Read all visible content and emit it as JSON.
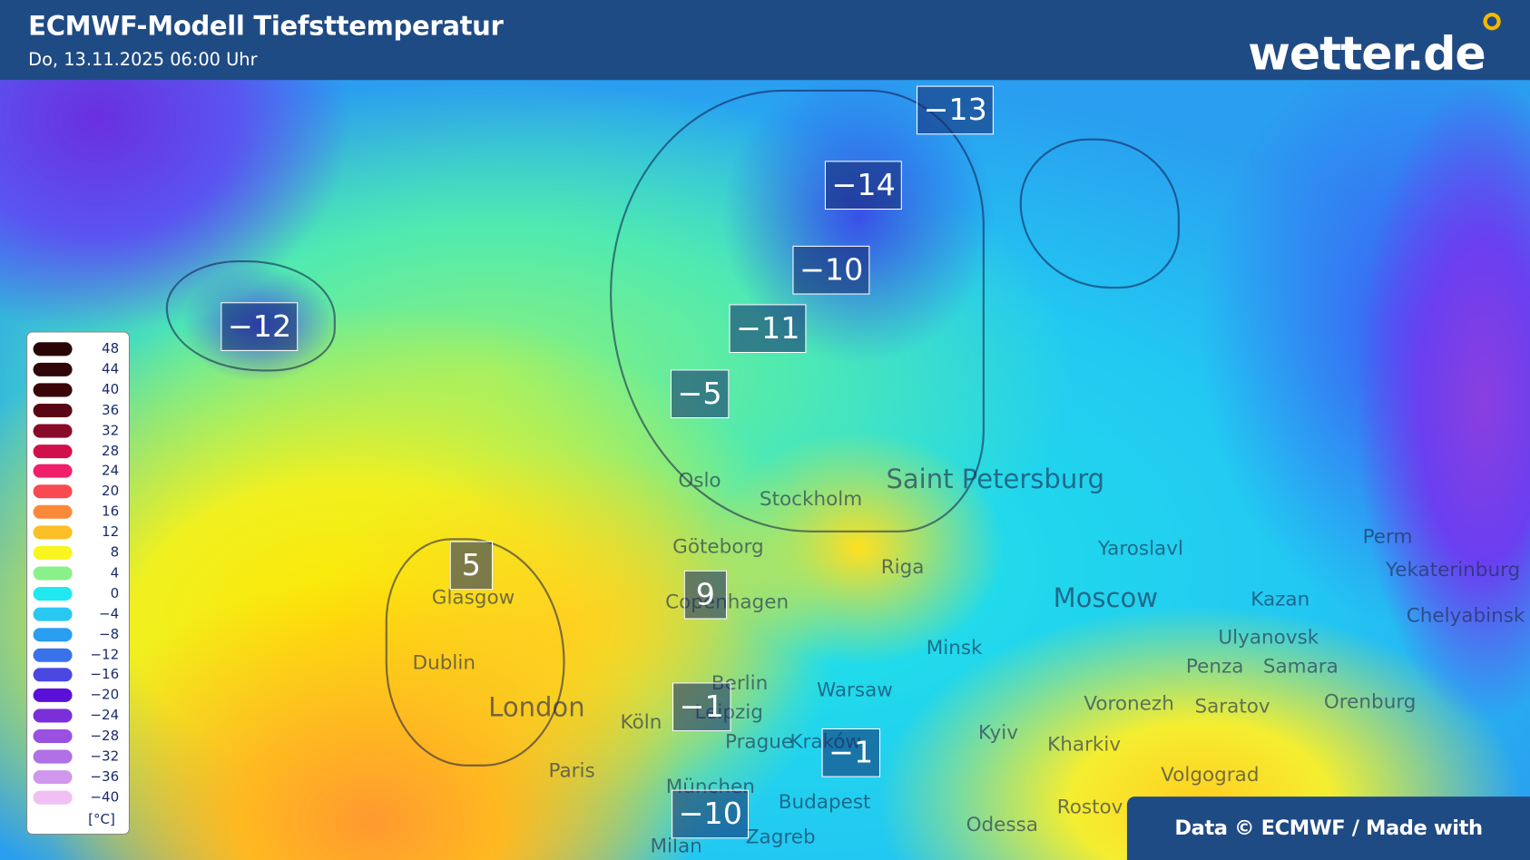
{
  "header": {
    "title": "ECMWF-Modell Tiefsttemperatur",
    "subtitle": "Do, 13.11.2025 06:00 Uhr",
    "logo": "wetter.de"
  },
  "legend": {
    "items": [
      {
        "label": "48",
        "color": "#2a0505"
      },
      {
        "label": "44",
        "color": "#300608"
      },
      {
        "label": "40",
        "color": "#3a0508"
      },
      {
        "label": "36",
        "color": "#5a0515"
      },
      {
        "label": "32",
        "color": "#8a0a2a"
      },
      {
        "label": "28",
        "color": "#d0104a"
      },
      {
        "label": "24",
        "color": "#f0206a"
      },
      {
        "label": "20",
        "color": "#f84a50"
      },
      {
        "label": "16",
        "color": "#fa8a3a"
      },
      {
        "label": "12",
        "color": "#fbbf28"
      },
      {
        "label": "8",
        "color": "#f8f520"
      },
      {
        "label": "4",
        "color": "#8af08a"
      },
      {
        "label": "0",
        "color": "#20e8f0"
      },
      {
        "label": "−4",
        "color": "#28c8f2"
      },
      {
        "label": "−8",
        "color": "#2a9ef0"
      },
      {
        "label": "−12",
        "color": "#3a72ec"
      },
      {
        "label": "−16",
        "color": "#4a48e0"
      },
      {
        "label": "−20",
        "color": "#5a10d8"
      },
      {
        "label": "−24",
        "color": "#7a30d8"
      },
      {
        "label": "−28",
        "color": "#9a50e0"
      },
      {
        "label": "−32",
        "color": "#b070e6"
      },
      {
        "label": "−36",
        "color": "#d098ec"
      },
      {
        "label": "−40",
        "color": "#f0c0f4"
      }
    ],
    "unit": "[°C]"
  },
  "temperatures": [
    "−13",
    "−14",
    "−10",
    "−12",
    "−11",
    "−5",
    "5",
    "9",
    "−1",
    "−1",
    "−10"
  ],
  "cities": [
    "Oslo",
    "Stockholm",
    "Saint Petersburg",
    "Göteborg",
    "Riga",
    "Yaroslavl",
    "Perm",
    "Yekaterinburg",
    "Moscow",
    "Kazan",
    "Chelyabinsk",
    "Glasgow",
    "Copenhagen",
    "Ulyanovsk",
    "Minsk",
    "Penza",
    "Samara",
    "Dublin",
    "Berlin",
    "Warsaw",
    "Leipzig",
    "London",
    "Voronezh",
    "Saratov",
    "Orenburg",
    "Köln",
    "Kyiv",
    "Prague",
    "Kraków",
    "Kharkiv",
    "Paris",
    "Volgograd",
    "München",
    "Budapest",
    "Rostov",
    "Odessa",
    "Zagreb",
    "Milan"
  ],
  "credit": "Data © ECMWF / Made with wetterglobus.com"
}
